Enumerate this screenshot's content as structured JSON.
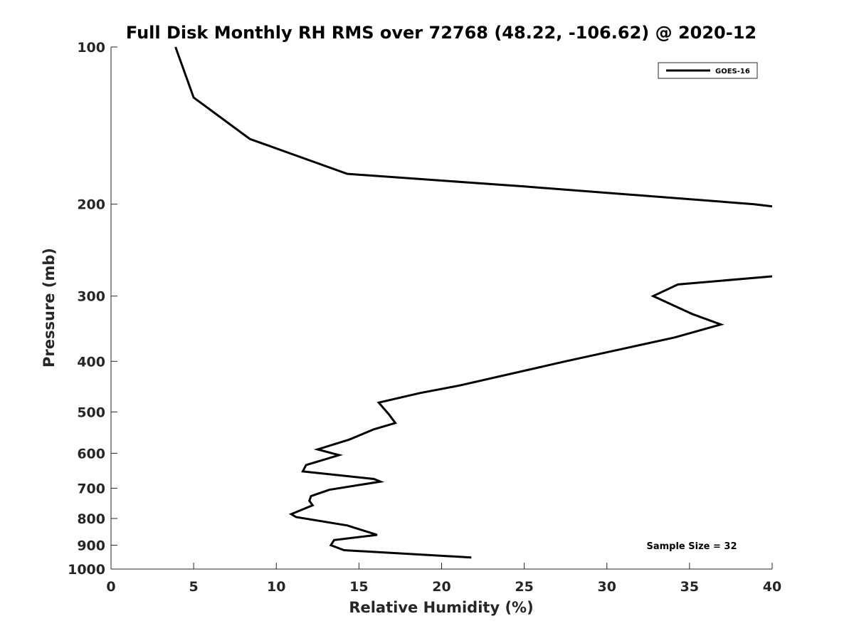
{
  "chart_data": {
    "type": "line",
    "title": "Full Disk Monthly RH RMS over 72768 (48.22, -106.62) @ 2020-12",
    "xlabel": "Relative Humidity (%)",
    "ylabel": "Pressure (mb)",
    "xlim": [
      0,
      40
    ],
    "ylim": [
      100,
      1000
    ],
    "y_scale": "log",
    "y_reversed": true,
    "x_ticks": [
      0,
      5,
      10,
      15,
      20,
      25,
      30,
      35,
      40
    ],
    "y_ticks": [
      100,
      200,
      300,
      400,
      500,
      600,
      700,
      800,
      900,
      1000
    ],
    "grid": false,
    "legend": {
      "placement": "top-right",
      "entries": [
        "GOES-16"
      ]
    },
    "annotations": [
      {
        "text": "Sample Size = 32",
        "placement": "bottom-right"
      }
    ],
    "series": [
      {
        "name": "GOES-16",
        "color": "#000000",
        "points": [
          [
            3.9,
            100
          ],
          [
            5.0,
            125
          ],
          [
            8.4,
            150
          ],
          [
            14.3,
            175
          ],
          [
            25.0,
            185
          ],
          [
            38.9,
            200
          ],
          [
            40.0,
            202
          ],
          null,
          [
            40.0,
            275
          ],
          [
            34.3,
            285
          ],
          [
            32.8,
            300
          ],
          [
            35.2,
            325
          ],
          [
            36.9,
            340
          ],
          [
            34.1,
            360
          ],
          [
            27.5,
            400
          ],
          [
            21.1,
            445
          ],
          [
            18.7,
            460
          ],
          [
            16.2,
            480
          ],
          [
            16.8,
            505
          ],
          [
            17.2,
            525
          ],
          [
            15.9,
            540
          ],
          [
            14.4,
            565
          ],
          [
            12.5,
            590
          ],
          [
            13.8,
            605
          ],
          [
            11.8,
            632
          ],
          [
            11.6,
            650
          ],
          [
            15.9,
            672
          ],
          [
            16.3,
            680
          ],
          [
            13.2,
            705
          ],
          [
            12.1,
            725
          ],
          [
            12.0,
            740
          ],
          [
            12.2,
            755
          ],
          [
            10.9,
            785
          ],
          [
            11.2,
            795
          ],
          [
            14.3,
            825
          ],
          [
            16.1,
            860
          ],
          [
            13.5,
            880
          ],
          [
            13.3,
            900
          ],
          [
            14.1,
            920
          ],
          [
            21.8,
            950
          ]
        ]
      }
    ]
  }
}
